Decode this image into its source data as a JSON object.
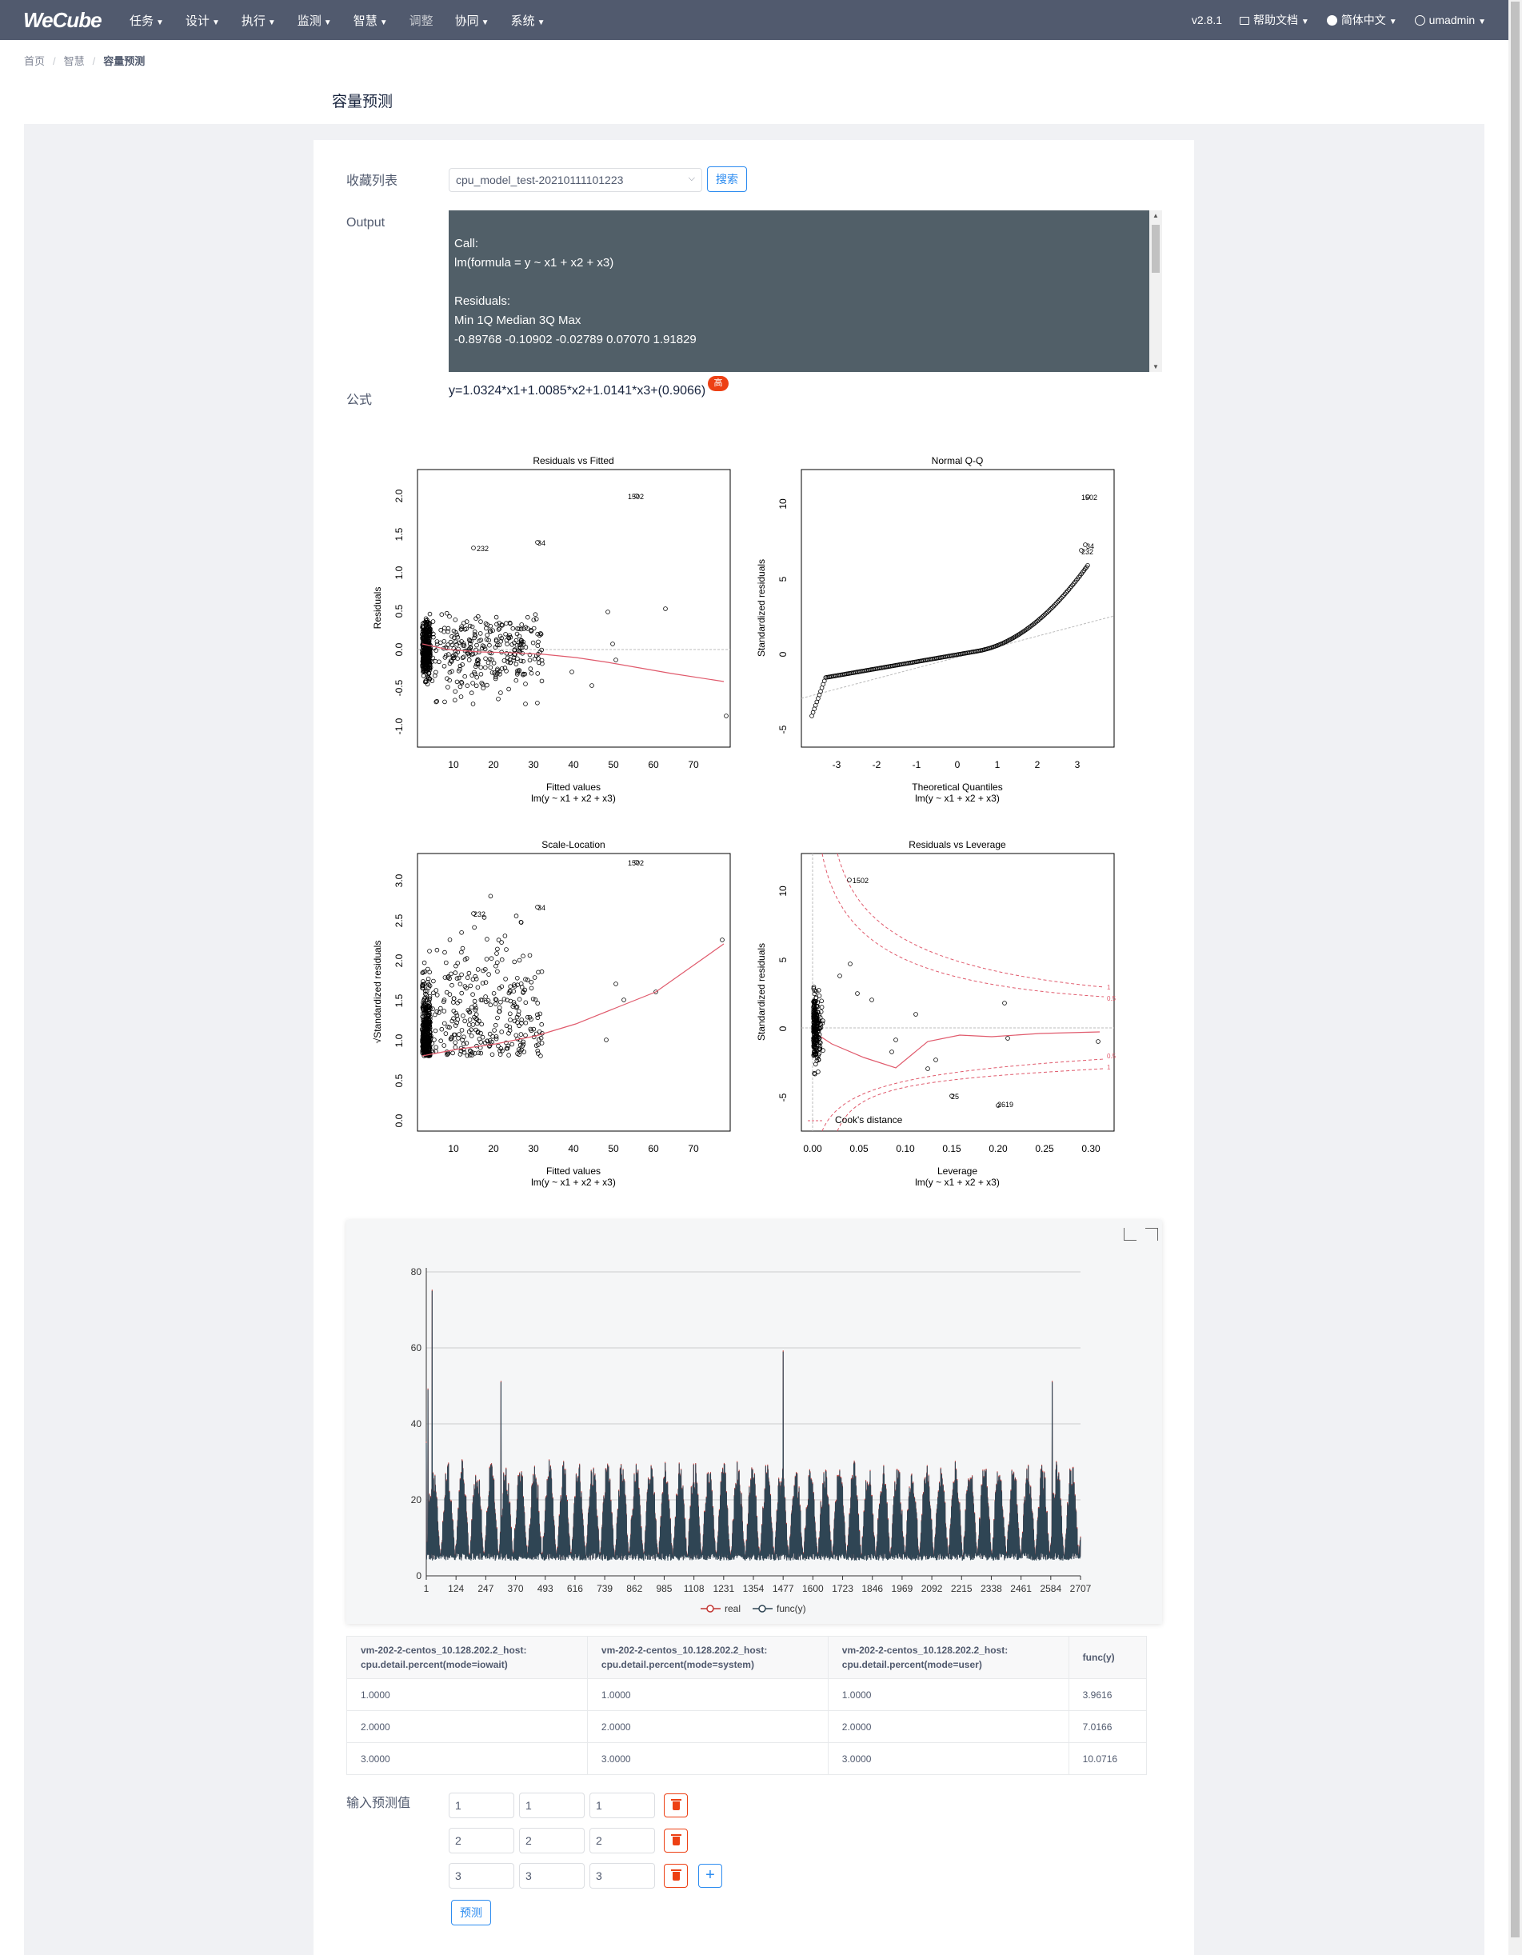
{
  "nav": {
    "logo": "WeCube",
    "items": [
      {
        "label": "任务"
      },
      {
        "label": "设计"
      },
      {
        "label": "执行"
      },
      {
        "label": "监测"
      },
      {
        "label": "智慧"
      },
      {
        "label": "调整"
      },
      {
        "label": "协同"
      },
      {
        "label": "系统"
      }
    ],
    "version": "v2.8.1",
    "help": "帮助文档",
    "language": "简体中文",
    "user": "umadmin"
  },
  "breadcrumb": {
    "home": "首页",
    "parent": "智慧",
    "current": "容量预测"
  },
  "page_title": "容量预测",
  "form": {
    "favorites_label": "收藏列表",
    "favorites_value": "cpu_model_test-20210111101223",
    "search_label": "搜索",
    "output_label": "Output",
    "output_lines": [
      "Call:",
      "lm(formula = y ~ x1 + x2 + x3)",
      "",
      "Residuals:",
      "Min 1Q Median 3Q Max",
      "-0.89768 -0.10902 -0.02789 0.07070 1.91829"
    ],
    "formula_label": "公式",
    "formula_value": "y=1.0324*x1+1.0085*x2+1.0141*x3+(0.9066)",
    "formula_badge": "高"
  },
  "diagnostics": {
    "p1": {
      "title": "Residuals vs Fitted",
      "xlabel": "Fitted values",
      "ylabel": "Residuals",
      "sub": "lm(y ~ x1 + x2 + x3)",
      "xticks": [
        "10",
        "20",
        "30",
        "40",
        "50",
        "60",
        "70"
      ],
      "yticks": [
        "-1.0",
        "-0.5",
        "0.0",
        "0.5",
        "1.0",
        "1.5",
        "2.0"
      ],
      "labels": [
        "1502",
        "232",
        "34"
      ]
    },
    "p2": {
      "title": "Normal Q-Q",
      "xlabel": "Theoretical Quantiles",
      "ylabel": "Standardized residuals",
      "sub": "lm(y ~ x1 + x2 + x3)",
      "xticks": [
        "-3",
        "-2",
        "-1",
        "0",
        "1",
        "2",
        "3"
      ],
      "yticks": [
        "-5",
        "0",
        "5",
        "10"
      ],
      "labels": [
        "1502",
        "34",
        "232"
      ]
    },
    "p3": {
      "title": "Scale-Location",
      "xlabel": "Fitted values",
      "ylabel": "√Standardized residuals",
      "sub": "lm(y ~ x1 + x2 + x3)",
      "xticks": [
        "10",
        "20",
        "30",
        "40",
        "50",
        "60",
        "70"
      ],
      "yticks": [
        "0.0",
        "0.5",
        "1.0",
        "1.5",
        "2.0",
        "2.5",
        "3.0"
      ],
      "labels": [
        "1502",
        "232",
        "34"
      ]
    },
    "p4": {
      "title": "Residuals vs Leverage",
      "xlabel": "Leverage",
      "ylabel": "Standardized residuals",
      "sub": "lm(y ~ x1 + x2 + x3)",
      "xticks": [
        "0.00",
        "0.05",
        "0.10",
        "0.15",
        "0.20",
        "0.25",
        "0.30"
      ],
      "yticks": [
        "-5",
        "0",
        "5",
        "10"
      ],
      "labels": [
        "1502",
        "25",
        "2619"
      ],
      "legend": "Cook's distance",
      "contours": [
        "1",
        "0.5",
        "0.5",
        "1"
      ]
    }
  },
  "chart_data": {
    "type": "line",
    "x_ticks": [
      "1",
      "124",
      "247",
      "370",
      "493",
      "616",
      "739",
      "862",
      "985",
      "1108",
      "1231",
      "1354",
      "1477",
      "1600",
      "1723",
      "1846",
      "1969",
      "2092",
      "2215",
      "2338",
      "2461",
      "2584",
      "2707"
    ],
    "y_ticks": [
      "0",
      "20",
      "40",
      "60",
      "80"
    ],
    "ylim": [
      0,
      80
    ],
    "xlim": [
      1,
      2707
    ],
    "series": [
      {
        "name": "real"
      },
      {
        "name": "func(y)"
      }
    ],
    "colors": {
      "real": "#c23531",
      "func(y)": "#2f4554"
    },
    "spikes": [
      {
        "x": 1,
        "y": 35
      },
      {
        "x": 8,
        "y": 49
      },
      {
        "x": 25,
        "y": 75
      },
      {
        "x": 310,
        "y": 51
      },
      {
        "x": 1477,
        "y": 59
      },
      {
        "x": 2590,
        "y": 51
      }
    ]
  },
  "table": {
    "headers": [
      [
        "vm-202-2-centos_10.128.202.2_host:",
        "cpu.detail.percent(mode=iowait)"
      ],
      [
        "vm-202-2-centos_10.128.202.2_host:",
        "cpu.detail.percent(mode=system)"
      ],
      [
        "vm-202-2-centos_10.128.202.2_host:",
        "cpu.detail.percent(mode=user)"
      ],
      [
        "func(y)",
        ""
      ]
    ],
    "rows": [
      [
        "1.0000",
        "1.0000",
        "1.0000",
        "3.9616"
      ],
      [
        "2.0000",
        "2.0000",
        "2.0000",
        "7.0166"
      ],
      [
        "3.0000",
        "3.0000",
        "3.0000",
        "10.0716"
      ]
    ]
  },
  "predict": {
    "label": "输入预测值",
    "rows": [
      [
        "1",
        "1",
        "1"
      ],
      [
        "2",
        "2",
        "2"
      ],
      [
        "3",
        "3",
        "3"
      ]
    ],
    "button": "预测"
  }
}
